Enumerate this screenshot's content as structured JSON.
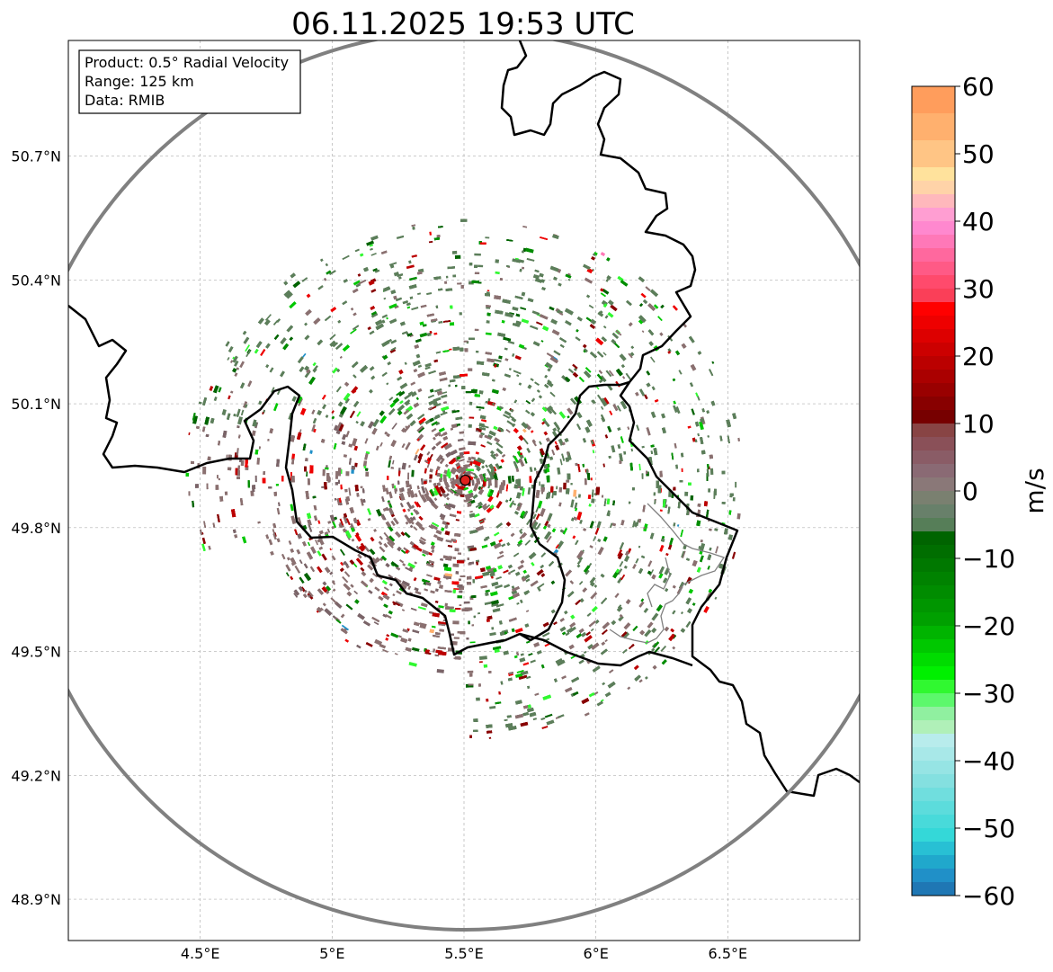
{
  "title": "06.11.2025 19:53 UTC",
  "info_box": {
    "product": "Product: 0.5° Radial Velocity",
    "range": "Range: 125 km",
    "data": "Data: RMIB"
  },
  "map": {
    "lon_range": [
      4.0,
      7.0
    ],
    "lat_range": [
      48.8,
      50.98
    ],
    "x_ticks": [
      {
        "value": 4.5,
        "label": "4.5°E"
      },
      {
        "value": 5.0,
        "label": "5°E"
      },
      {
        "value": 5.5,
        "label": "5.5°E"
      },
      {
        "value": 6.0,
        "label": "6°E"
      },
      {
        "value": 6.5,
        "label": "6.5°E"
      }
    ],
    "y_ticks": [
      {
        "value": 48.9,
        "label": "48.9°N"
      },
      {
        "value": 49.2,
        "label": "49.2°N"
      },
      {
        "value": 49.5,
        "label": "49.5°N"
      },
      {
        "value": 49.8,
        "label": "49.8°N"
      },
      {
        "value": 50.1,
        "label": "50.1°N"
      },
      {
        "value": 50.4,
        "label": "50.4°N"
      },
      {
        "value": 50.7,
        "label": "50.7°N"
      }
    ],
    "radar_site": {
      "lon": 5.505,
      "lat": 49.915
    },
    "range_km": 125,
    "marker_color": "#e0201c",
    "range_ring_color": "#808080",
    "border_color": "#000000"
  },
  "colorbar": {
    "label": "m/s",
    "min": -60,
    "max": 60,
    "ticks": [
      60,
      50,
      40,
      30,
      20,
      10,
      0,
      -10,
      -20,
      -30,
      -40,
      -50,
      -60
    ],
    "tick_labels": [
      "60",
      "50",
      "40",
      "30",
      "20",
      "10",
      "0",
      "−10",
      "−20",
      "−30",
      "−40",
      "−50",
      "−60"
    ],
    "segments": [
      {
        "from": 56,
        "to": 60,
        "color": "#ff9d5c"
      },
      {
        "from": 52,
        "to": 56,
        "color": "#ffb06e"
      },
      {
        "from": 48,
        "to": 52,
        "color": "#ffc585"
      },
      {
        "from": 46,
        "to": 48,
        "color": "#ffe29c"
      },
      {
        "from": 44,
        "to": 46,
        "color": "#ffd3a8"
      },
      {
        "from": 42,
        "to": 44,
        "color": "#ffb8bc"
      },
      {
        "from": 40,
        "to": 42,
        "color": "#ff9ed2"
      },
      {
        "from": 38,
        "to": 40,
        "color": "#ff88cf"
      },
      {
        "from": 36,
        "to": 38,
        "color": "#ff78b8"
      },
      {
        "from": 34,
        "to": 36,
        "color": "#ff689e"
      },
      {
        "from": 32,
        "to": 34,
        "color": "#ff5a86"
      },
      {
        "from": 30,
        "to": 32,
        "color": "#ff4a6c"
      },
      {
        "from": 28,
        "to": 30,
        "color": "#fa3f58"
      },
      {
        "from": 26,
        "to": 28,
        "color": "#ff0000"
      },
      {
        "from": 24,
        "to": 26,
        "color": "#ee0000"
      },
      {
        "from": 22,
        "to": 24,
        "color": "#dd0000"
      },
      {
        "from": 20,
        "to": 22,
        "color": "#cc0000"
      },
      {
        "from": 18,
        "to": 20,
        "color": "#bb0000"
      },
      {
        "from": 16,
        "to": 18,
        "color": "#aa0000"
      },
      {
        "from": 14,
        "to": 16,
        "color": "#990000"
      },
      {
        "from": 12,
        "to": 14,
        "color": "#880000"
      },
      {
        "from": 10,
        "to": 12,
        "color": "#770000"
      },
      {
        "from": 8,
        "to": 10,
        "color": "#884444"
      },
      {
        "from": 6,
        "to": 8,
        "color": "#8a5058"
      },
      {
        "from": 4,
        "to": 6,
        "color": "#8a5c66"
      },
      {
        "from": 2,
        "to": 4,
        "color": "#8a6a74"
      },
      {
        "from": 0,
        "to": 2,
        "color": "#8a7878"
      },
      {
        "from": -2,
        "to": 0,
        "color": "#7a8070"
      },
      {
        "from": -4,
        "to": -2,
        "color": "#68806a"
      },
      {
        "from": -6,
        "to": -4,
        "color": "#567e58"
      },
      {
        "from": -8,
        "to": -6,
        "color": "#006400"
      },
      {
        "from": -10,
        "to": -8,
        "color": "#006e00"
      },
      {
        "from": -12,
        "to": -10,
        "color": "#007800"
      },
      {
        "from": -14,
        "to": -12,
        "color": "#008200"
      },
      {
        "from": -16,
        "to": -14,
        "color": "#008c00"
      },
      {
        "from": -18,
        "to": -16,
        "color": "#009600"
      },
      {
        "from": -20,
        "to": -18,
        "color": "#00a000"
      },
      {
        "from": -22,
        "to": -20,
        "color": "#00b400"
      },
      {
        "from": -24,
        "to": -22,
        "color": "#00c800"
      },
      {
        "from": -26,
        "to": -24,
        "color": "#00dc00"
      },
      {
        "from": -28,
        "to": -26,
        "color": "#00f000"
      },
      {
        "from": -30,
        "to": -28,
        "color": "#30f830"
      },
      {
        "from": -32,
        "to": -30,
        "color": "#5cf86c"
      },
      {
        "from": -34,
        "to": -32,
        "color": "#90f0a0"
      },
      {
        "from": -36,
        "to": -34,
        "color": "#b0f0b8"
      },
      {
        "from": -38,
        "to": -36,
        "color": "#b8ecec"
      },
      {
        "from": -40,
        "to": -38,
        "color": "#a8e8e8"
      },
      {
        "from": -42,
        "to": -40,
        "color": "#96e4e4"
      },
      {
        "from": -44,
        "to": -42,
        "color": "#84e0e0"
      },
      {
        "from": -46,
        "to": -44,
        "color": "#70dede"
      },
      {
        "from": -48,
        "to": -46,
        "color": "#5cdcdc"
      },
      {
        "from": -50,
        "to": -48,
        "color": "#48dada"
      },
      {
        "from": -52,
        "to": -50,
        "color": "#34d8d8"
      },
      {
        "from": -54,
        "to": -52,
        "color": "#28c0d4"
      },
      {
        "from": -56,
        "to": -54,
        "color": "#20a8cc"
      },
      {
        "from": -58,
        "to": -56,
        "color": "#2090c8"
      },
      {
        "from": -60,
        "to": -58,
        "color": "#1f77b4"
      }
    ]
  },
  "echo_colors": {
    "dominant": [
      "#5c7e5a",
      "#8a7070",
      "#7a6468"
    ],
    "green": [
      "#006400",
      "#008c00",
      "#00c800",
      "#30f830"
    ],
    "red": [
      "#880000",
      "#bb0000",
      "#ee0000"
    ],
    "rare": [
      "#ff78b8",
      "#ffb06e",
      "#2090c8"
    ]
  }
}
